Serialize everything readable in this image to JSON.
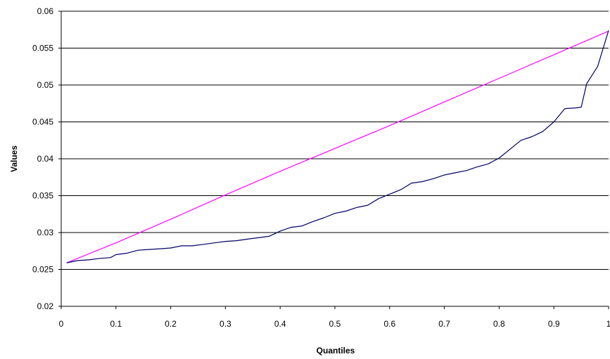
{
  "chart_data": {
    "type": "line",
    "title": "",
    "xlabel": "Quantiles",
    "ylabel": "Values",
    "xlim": [
      0,
      1
    ],
    "ylim": [
      0.02,
      0.06
    ],
    "x_ticks": [
      "0",
      "0.1",
      "0.2",
      "0.3",
      "0.4",
      "0.5",
      "0.6",
      "0.7",
      "0.8",
      "0.9",
      "1"
    ],
    "y_ticks": [
      "0.02",
      "0.025",
      "0.03",
      "0.035",
      "0.04",
      "0.045",
      "0.05",
      "0.055",
      "0.06"
    ],
    "grid": "horizontal",
    "legend": "none",
    "series": [
      {
        "color": "#ff00ff",
        "x": [
          0.01,
          0.1,
          0.2,
          0.3,
          0.4,
          0.5,
          0.6,
          0.7,
          0.8,
          0.9,
          1.0
        ],
        "y": [
          0.0259,
          0.0286,
          0.0318,
          0.0351,
          0.0383,
          0.0414,
          0.0445,
          0.0477,
          0.0509,
          0.0541,
          0.0573
        ]
      },
      {
        "color": "#000066",
        "x": [
          0.01,
          0.03,
          0.05,
          0.07,
          0.09,
          0.1,
          0.12,
          0.14,
          0.16,
          0.18,
          0.2,
          0.22,
          0.24,
          0.26,
          0.28,
          0.3,
          0.32,
          0.34,
          0.36,
          0.38,
          0.4,
          0.42,
          0.44,
          0.46,
          0.48,
          0.5,
          0.52,
          0.54,
          0.56,
          0.58,
          0.6,
          0.62,
          0.64,
          0.66,
          0.68,
          0.7,
          0.72,
          0.74,
          0.76,
          0.78,
          0.8,
          0.82,
          0.84,
          0.86,
          0.88,
          0.9,
          0.92,
          0.94,
          0.95,
          0.96,
          0.98,
          1.0
        ],
        "y": [
          0.0259,
          0.0262,
          0.0263,
          0.0265,
          0.0266,
          0.027,
          0.0272,
          0.0276,
          0.0277,
          0.0278,
          0.0279,
          0.0282,
          0.0282,
          0.0284,
          0.0286,
          0.0288,
          0.0289,
          0.0291,
          0.0293,
          0.0295,
          0.0302,
          0.0307,
          0.0309,
          0.0315,
          0.032,
          0.0326,
          0.0329,
          0.0334,
          0.0337,
          0.0346,
          0.0352,
          0.0358,
          0.0367,
          0.0369,
          0.0373,
          0.0378,
          0.0381,
          0.0384,
          0.0389,
          0.0393,
          0.0401,
          0.0413,
          0.0425,
          0.043,
          0.0437,
          0.045,
          0.0468,
          0.0469,
          0.047,
          0.0502,
          0.0525,
          0.0574
        ]
      }
    ]
  }
}
